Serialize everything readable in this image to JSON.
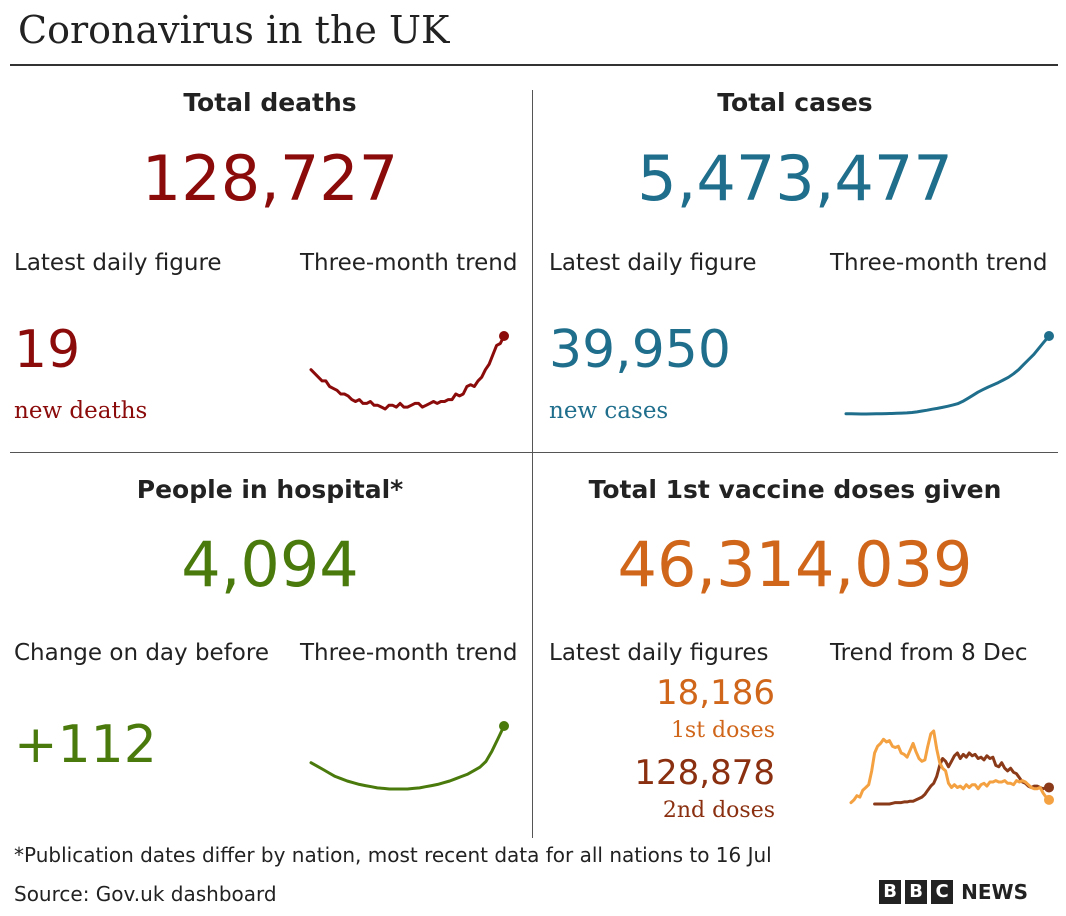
{
  "title": "Coronavirus in the UK",
  "colors": {
    "deaths": "#8b0b0b",
    "cases": "#1e6e8c",
    "hospital": "#4a7a0c",
    "vaccine1": "#d0661a",
    "vaccine2": "#8a3010",
    "vaccine1_line": "#f4a142",
    "vaccine2_line": "#8a3a18"
  },
  "panels": {
    "deaths": {
      "heading": "Total deaths",
      "total": "128,727",
      "latest_label": "Latest daily figure",
      "trend_label": "Three-month trend",
      "daily": "19",
      "daily_sub": "new deaths"
    },
    "cases": {
      "heading": "Total cases",
      "total": "5,473,477",
      "latest_label": "Latest daily figure",
      "trend_label": "Three-month trend",
      "daily": "39,950",
      "daily_sub": "new cases"
    },
    "hospital": {
      "heading": "People in hospital*",
      "total": "4,094",
      "latest_label": "Change on day before",
      "trend_label": "Three-month trend",
      "daily": "+112"
    },
    "vaccine": {
      "heading": "Total 1st vaccine doses given",
      "total": "46,314,039",
      "latest_label": "Latest daily figures",
      "trend_label": "Trend from 8 Dec",
      "first_value": "18,186",
      "first_label": "1st doses",
      "second_value": "128,878",
      "second_label": "2nd doses"
    }
  },
  "footnote": "*Publication dates differ by nation, most recent data for all nations to 16 Jul",
  "source": "Source: Gov.uk dashboard",
  "logo": {
    "letters": [
      "B",
      "B",
      "C"
    ],
    "word": "NEWS"
  },
  "chart_data": [
    {
      "type": "line",
      "name": "deaths-trend",
      "values": [
        30,
        28,
        26,
        24,
        24,
        21,
        20,
        19,
        17,
        17,
        16,
        14,
        13,
        14,
        12,
        12,
        13,
        11,
        11,
        10,
        9,
        11,
        11,
        10,
        12,
        10,
        10,
        11,
        12,
        12,
        10,
        11,
        12,
        13,
        12,
        13,
        13,
        14,
        14,
        17,
        16,
        17,
        21,
        22,
        21,
        24,
        26,
        30,
        33,
        38,
        43,
        44,
        48
      ]
    },
    {
      "type": "line",
      "name": "cases-trend",
      "values": [
        2.0,
        1.95,
        1.9,
        1.85,
        1.85,
        1.9,
        1.95,
        2.0,
        2.05,
        2.1,
        2.2,
        2.3,
        2.4,
        2.6,
        2.9,
        3.3,
        3.7,
        4.2,
        4.6,
        5.1,
        5.6,
        6.2,
        6.9,
        8.0,
        9.5,
        11.0,
        12.5,
        13.8,
        15.0,
        16.1,
        17.2,
        18.5,
        19.8,
        21.5,
        23.5,
        26.0,
        28.5,
        31.0,
        34.0,
        37.0,
        40.0
      ]
    },
    {
      "type": "line",
      "name": "hospital-trend",
      "values": [
        4.5,
        4.2,
        3.9,
        3.6,
        3.3,
        3.1,
        2.9,
        2.75,
        2.6,
        2.5,
        2.4,
        2.3,
        2.25,
        2.2,
        2.2,
        2.2,
        2.2,
        2.25,
        2.3,
        2.4,
        2.5,
        2.6,
        2.75,
        2.9,
        3.1,
        3.3,
        3.5,
        3.8,
        4.1,
        4.6,
        5.5,
        6.6,
        7.7
      ]
    },
    {
      "type": "line",
      "name": "vaccine-trend",
      "series": [
        {
          "name": "1st doses",
          "values": [
            0.2,
            0.4,
            0.7,
            0.6,
            1.1,
            1.3,
            1.5,
            2.5,
            3.8,
            4.3,
            4.5,
            4.8,
            4.6,
            4.7,
            4.3,
            4.2,
            4.3,
            3.8,
            3.7,
            3.5,
            4.0,
            4.5,
            3.9,
            3.4,
            3.2,
            3.3,
            4.3,
            5.2,
            5.4,
            4.1,
            3.1,
            2.7,
            2.5,
            1.6,
            1.3,
            1.5,
            1.3,
            1.4,
            1.2,
            1.5,
            1.3,
            1.5,
            1.5,
            1.2,
            1.5,
            1.6,
            1.4,
            1.7,
            1.7,
            1.8,
            1.7,
            1.7,
            1.8,
            1.6,
            1.6,
            1.5,
            1.8,
            1.7,
            1.8,
            1.7,
            1.5,
            1.3,
            1.2,
            1.2,
            1.3,
            0.9,
            0.6,
            0.4
          ]
        },
        {
          "name": "2nd doses",
          "values": [
            null,
            null,
            null,
            null,
            null,
            null,
            null,
            null,
            0.1,
            0.1,
            0.1,
            0.1,
            0.1,
            0.1,
            0.15,
            0.2,
            0.2,
            0.2,
            0.25,
            0.25,
            0.3,
            0.3,
            0.4,
            0.5,
            0.6,
            0.8,
            1.1,
            1.4,
            1.6,
            2.1,
            2.9,
            3.4,
            3.2,
            2.8,
            3.2,
            3.6,
            3.8,
            3.4,
            3.7,
            3.5,
            3.8,
            3.6,
            3.7,
            3.4,
            3.5,
            3.3,
            3.6,
            3.4,
            3.5,
            2.9,
            2.8,
            3.1,
            2.7,
            2.5,
            2.7,
            2.4,
            2.3,
            2.0,
            1.7,
            1.6,
            1.4,
            1.3,
            1.4,
            1.4,
            1.3,
            1.2,
            1.3,
            1.3
          ]
        }
      ]
    }
  ]
}
